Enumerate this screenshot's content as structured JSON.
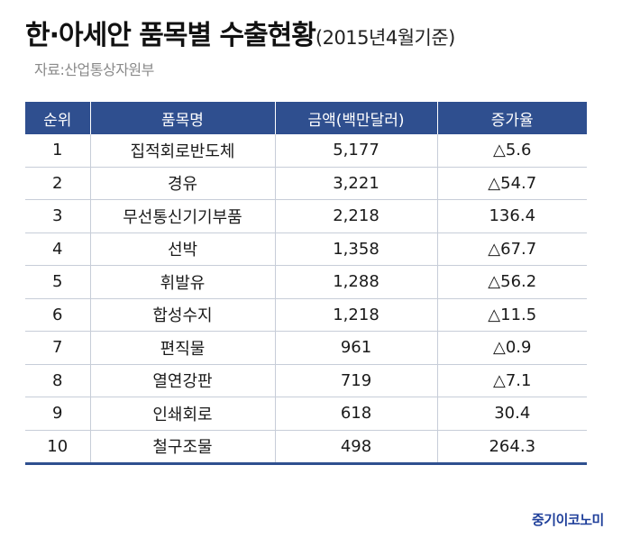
{
  "title": {
    "main": "한·아세안 품목별 수출현황",
    "sub": "(2015년4월기준)"
  },
  "source": "자료:산업통상자원부",
  "table": {
    "headers": [
      "순위",
      "품목명",
      "금액(백만달러)",
      "증가율"
    ],
    "rows": [
      {
        "rank": "1",
        "item": "집적회로반도체",
        "amount": "5,177",
        "growth": "△5.6"
      },
      {
        "rank": "2",
        "item": "경유",
        "amount": "3,221",
        "growth": "△54.7"
      },
      {
        "rank": "3",
        "item": "무선통신기기부품",
        "amount": "2,218",
        "growth": "136.4"
      },
      {
        "rank": "4",
        "item": "선박",
        "amount": "1,358",
        "growth": "△67.7"
      },
      {
        "rank": "5",
        "item": "휘발유",
        "amount": "1,288",
        "growth": "△56.2"
      },
      {
        "rank": "6",
        "item": "합성수지",
        "amount": "1,218",
        "growth": "△11.5"
      },
      {
        "rank": "7",
        "item": "편직물",
        "amount": "961",
        "growth": "△0.9"
      },
      {
        "rank": "8",
        "item": "열연강판",
        "amount": "719",
        "growth": "△7.1"
      },
      {
        "rank": "9",
        "item": "인쇄회로",
        "amount": "618",
        "growth": "30.4"
      },
      {
        "rank": "10",
        "item": "철구조물",
        "amount": "498",
        "growth": "264.3"
      }
    ]
  },
  "logo": "중기이코노미",
  "colors": {
    "header_bg": "#2f4f8f",
    "logo": "#1f3f9a"
  }
}
